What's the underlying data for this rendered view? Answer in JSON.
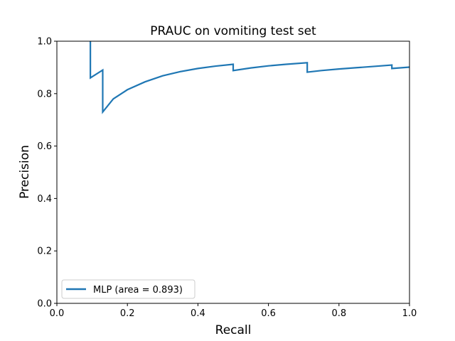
{
  "chart_data": {
    "type": "line",
    "title": "PRAUC on vomiting test set",
    "xlabel": "Recall",
    "ylabel": "Precision",
    "xlim": [
      0.0,
      1.0
    ],
    "ylim": [
      0.0,
      1.0
    ],
    "xticks": [
      0.0,
      0.2,
      0.4,
      0.6,
      0.8,
      1.0
    ],
    "yticks": [
      0.0,
      0.2,
      0.4,
      0.6,
      0.8,
      1.0
    ],
    "xtick_labels": [
      "0.0",
      "0.2",
      "0.4",
      "0.6",
      "0.8",
      "1.0"
    ],
    "ytick_labels": [
      "0.0",
      "0.2",
      "0.4",
      "0.6",
      "0.8",
      "1.0"
    ],
    "grid": false,
    "legend_position": "lower-left",
    "series": [
      {
        "name": "MLP (area = 0.893)",
        "color": "#1f77b4",
        "x": [
          0.095,
          0.095,
          0.095,
          0.13,
          0.13,
          0.16,
          0.2,
          0.25,
          0.3,
          0.35,
          0.4,
          0.45,
          0.5,
          0.5,
          0.55,
          0.6,
          0.65,
          0.71,
          0.71,
          0.75,
          0.8,
          0.85,
          0.9,
          0.95,
          0.95,
          1.0
        ],
        "y": [
          1.0,
          0.86,
          0.86,
          0.89,
          0.73,
          0.78,
          0.815,
          0.845,
          0.868,
          0.884,
          0.896,
          0.905,
          0.912,
          0.888,
          0.898,
          0.906,
          0.912,
          0.918,
          0.882,
          0.888,
          0.894,
          0.899,
          0.904,
          0.909,
          0.896,
          0.901
        ]
      }
    ]
  }
}
